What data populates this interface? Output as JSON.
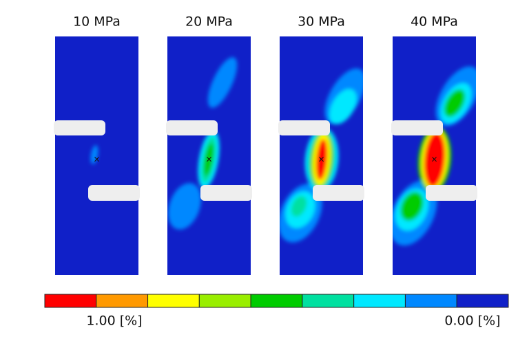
{
  "panels": [
    {
      "title": "10 MPa"
    },
    {
      "title": "20 MPa"
    },
    {
      "title": "30 MPa"
    },
    {
      "title": "40 MPa"
    }
  ],
  "colorbar": {
    "colors": [
      "#ff0000",
      "#ff9900",
      "#ffff00",
      "#99ee00",
      "#00cc00",
      "#00e0a0",
      "#00e8ff",
      "#0088ff",
      "#1020c8"
    ],
    "left_label": "1.00 [%]",
    "right_label": "0.00 [%]"
  }
}
